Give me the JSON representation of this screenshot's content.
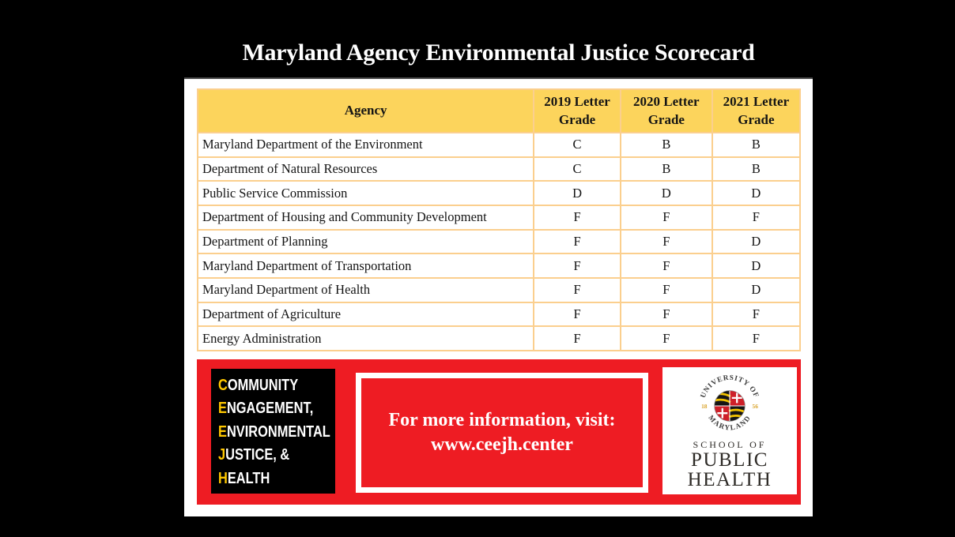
{
  "title": "Maryland Agency Environmental Justice Scorecard",
  "chart_data": {
    "type": "table",
    "title": "Maryland Agency Environmental Justice Scorecard",
    "columns": [
      "Agency",
      "2019 Letter Grade",
      "2020 Letter Grade",
      "2021 Letter Grade"
    ],
    "rows": [
      [
        "Maryland Department of the Environment",
        "C",
        "B",
        "B"
      ],
      [
        "Department of Natural Resources",
        "C",
        "B",
        "B"
      ],
      [
        "Public Service Commission",
        "D",
        "D",
        "D"
      ],
      [
        "Department of Housing and Community Development",
        "F",
        "F",
        "F"
      ],
      [
        "Department of Planning",
        "F",
        "F",
        "D"
      ],
      [
        "Maryland Department of Transportation",
        "F",
        "F",
        "D"
      ],
      [
        "Maryland Department of Health",
        "F",
        "F",
        "D"
      ],
      [
        "Department of Agriculture",
        "F",
        "F",
        "F"
      ],
      [
        "Energy Administration",
        "F",
        "F",
        "F"
      ]
    ]
  },
  "footer": {
    "ceejh_logo": {
      "lines": [
        "COMMUNITY",
        "ENGAGEMENT,",
        "ENVIRONMENTAL",
        "JUSTICE, &",
        "HEALTH"
      ]
    },
    "info": {
      "line1": "For more information, visit:",
      "line2": "www.ceejh.center"
    },
    "umd": {
      "seal_top": "UNIVERSITY OF",
      "seal_bottom": "MARYLAND",
      "year_left": "18",
      "year_right": "56",
      "school_of": "SCHOOL OF",
      "public": "PUBLIC",
      "health": "HEALTH"
    }
  },
  "colors": {
    "background": "#000000",
    "card_white": "#ffffff",
    "header_yellow": "#fcd45c",
    "table_border": "#fbcf8e",
    "banner_red": "#ee1c23",
    "gold": "#ffc800",
    "text_black": "#141414",
    "umd_text": "#2d2a26",
    "maryland_red": "#ce2029",
    "seal_gold": "#d9a32a"
  }
}
